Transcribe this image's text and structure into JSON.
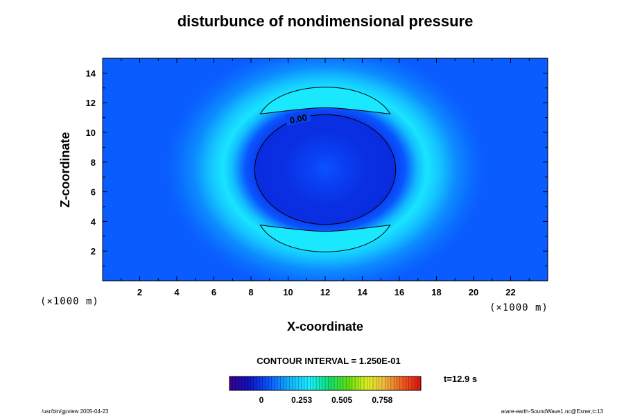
{
  "chart_data": {
    "type": "heatmap",
    "title": "disturbunce of nondimensional pressure",
    "xlabel": "X-coordinate",
    "ylabel": "Z-coordinate",
    "x_unit": "(×1000 m)",
    "y_unit": "(×1000 m)",
    "xlim": [
      0,
      24
    ],
    "ylim": [
      0,
      15
    ],
    "x_ticks": [
      2,
      4,
      6,
      8,
      10,
      12,
      14,
      16,
      18,
      20,
      22
    ],
    "y_ticks": [
      2,
      4,
      6,
      8,
      10,
      12,
      14
    ],
    "contour_label": "0.00",
    "contour_value": 0.0,
    "contour_interval_text": "CONTOUR INTERVAL = 1.250E-01",
    "time_label": "t=12.9 s",
    "colorbar": {
      "tick_labels": [
        "0",
        "0.253",
        "0.505",
        "0.758"
      ],
      "tick_values": [
        0,
        0.253,
        0.505,
        0.758
      ]
    },
    "field": {
      "center": [
        12,
        7.5
      ],
      "inner_zero_radius": [
        3.8,
        3.7
      ],
      "upper_crescent": {
        "x_range": [
          8.5,
          15.5
        ],
        "z_range": [
          11.2,
          12.9
        ]
      },
      "lower_crescent": {
        "x_range": [
          8.5,
          15.5
        ],
        "z_range": [
          2.1,
          3.8
        ]
      }
    },
    "footer_left": "/usr/bin/gpview 2005-04-23",
    "footer_right": "arare-earth-SoundWave1.nc@Exner,t=13"
  },
  "colors": {
    "background_field": "#0a5cff",
    "ring_light": "#19e6ff",
    "ring_mid": "#0a9cff",
    "inner_deep": "#0a2bdc",
    "inner_mid": "#0a44f0",
    "contour_line": "#000000"
  }
}
